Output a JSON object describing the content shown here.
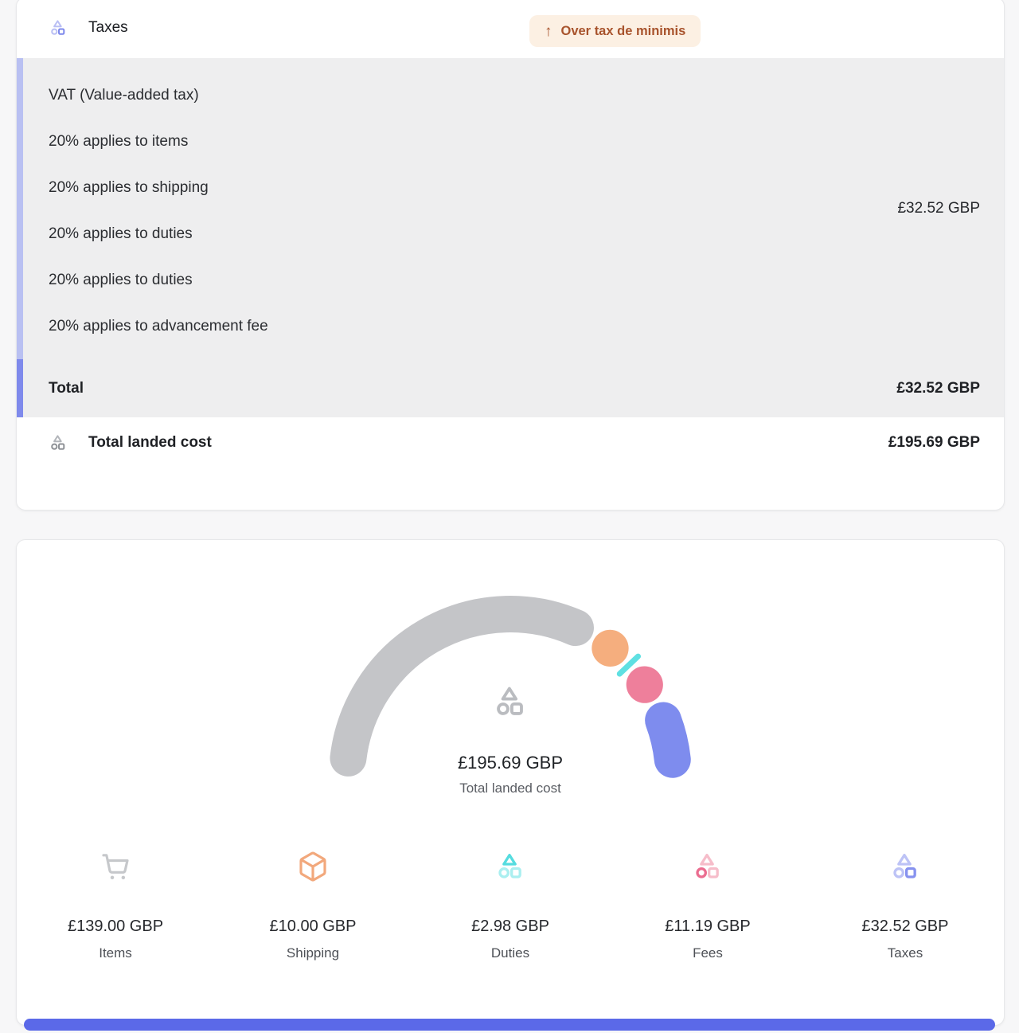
{
  "colors": {
    "accent_light": "#b9c0f2",
    "accent_dark": "#7f8aec",
    "panel_bg": "#eeeeef",
    "badge_bg": "#fcf0e3",
    "badge_text": "#a8532c",
    "bottom_bar": "#5b69e8"
  },
  "taxes_card": {
    "title": "Taxes",
    "icon": {
      "name": "shapes-icon",
      "dark": "#7d88ec",
      "light": "#babff4",
      "accent": "square"
    },
    "badge": {
      "arrow": "↑",
      "label": "Over tax de minimis"
    },
    "tax_lines": [
      "VAT (Value-added tax)",
      "20% applies to items",
      "20% applies to shipping",
      "20% applies to duties",
      "20% applies to duties",
      "20% applies to advancement fee"
    ],
    "lines_amount": "£32.52 GBP",
    "total": {
      "label": "Total",
      "amount": "£32.52 GBP"
    },
    "landed": {
      "label": "Total landed cost",
      "amount": "£195.69 GBP",
      "icon": {
        "name": "shapes-icon",
        "dark": "#8f9297",
        "light": "#b2b5ba",
        "accent": "circle square"
      }
    }
  },
  "summary_card": {
    "center": {
      "amount": "£195.69 GBP",
      "label": "Total landed cost",
      "icon": {
        "name": "shapes-icon",
        "dark": "#babcc0",
        "light": "#babcc0",
        "accent": ""
      }
    },
    "items": [
      {
        "label": "Items",
        "amount": "£139.00 GBP",
        "icon": "cart-icon",
        "color": "#c6c8cb"
      },
      {
        "label": "Shipping",
        "amount": "£10.00 GBP",
        "icon": "package-icon",
        "color": "#f2a87c"
      },
      {
        "label": "Duties",
        "amount": "£2.98 GBP",
        "icon": "shapes-icon",
        "dark": "#55dcdf",
        "light": "#aaeff0",
        "accent": "triangle"
      },
      {
        "label": "Fees",
        "amount": "£11.19 GBP",
        "icon": "shapes-icon",
        "dark": "#eb6d90",
        "light": "#f6bdca",
        "accent": "circle"
      },
      {
        "label": "Taxes",
        "amount": "£32.52 GBP",
        "icon": "shapes-icon",
        "dark": "#8792ef",
        "light": "#bdc3f6",
        "accent": "square"
      }
    ]
  },
  "chart_data": {
    "type": "gauge",
    "title": "Total landed cost",
    "center_value": "£195.69 GBP",
    "total": 195.69,
    "currency": "GBP",
    "arc_span_degrees": 180,
    "legend_position": "below",
    "segments": [
      {
        "name": "Items",
        "value": 139.0,
        "color": "#c4c5c8"
      },
      {
        "name": "Shipping",
        "value": 10.0,
        "color": "#f5ae7e"
      },
      {
        "name": "Duties",
        "value": 2.98,
        "color": "#5fe0e2"
      },
      {
        "name": "Fees",
        "value": 11.19,
        "color": "#ee7f9b"
      },
      {
        "name": "Taxes",
        "value": 32.52,
        "color": "#7e8cee"
      }
    ]
  }
}
